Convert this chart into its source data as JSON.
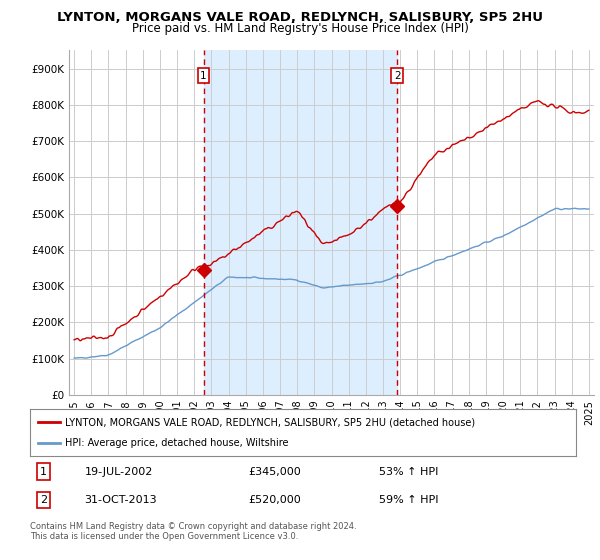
{
  "title": "LYNTON, MORGANS VALE ROAD, REDLYNCH, SALISBURY, SP5 2HU",
  "subtitle": "Price paid vs. HM Land Registry's House Price Index (HPI)",
  "title_fontsize": 9.5,
  "subtitle_fontsize": 8.5,
  "ylabel_ticks": [
    "£0",
    "£100K",
    "£200K",
    "£300K",
    "£400K",
    "£500K",
    "£600K",
    "£700K",
    "£800K",
    "£900K"
  ],
  "ytick_vals": [
    0,
    100000,
    200000,
    300000,
    400000,
    500000,
    600000,
    700000,
    800000,
    900000
  ],
  "ylim": [
    0,
    950000
  ],
  "xlim_start": 1994.7,
  "xlim_end": 2025.3,
  "background_color": "#ffffff",
  "plot_bg_color": "#ffffff",
  "grid_color": "#cccccc",
  "shade_color": "#ddeeff",
  "hpi_color": "#6699cc",
  "price_color": "#cc0000",
  "marker1_x": 2002.54,
  "marker1_y": 345000,
  "marker2_x": 2013.83,
  "marker2_y": 520000,
  "legend_label1": "LYNTON, MORGANS VALE ROAD, REDLYNCH, SALISBURY, SP5 2HU (detached house)",
  "legend_label2": "HPI: Average price, detached house, Wiltshire",
  "footer": "Contains HM Land Registry data © Crown copyright and database right 2024.\nThis data is licensed under the Open Government Licence v3.0.",
  "xtick_years": [
    1995,
    1996,
    1997,
    1998,
    1999,
    2000,
    2001,
    2002,
    2003,
    2004,
    2005,
    2006,
    2007,
    2008,
    2009,
    2010,
    2011,
    2012,
    2013,
    2014,
    2015,
    2016,
    2017,
    2018,
    2019,
    2020,
    2021,
    2022,
    2023,
    2024,
    2025
  ]
}
